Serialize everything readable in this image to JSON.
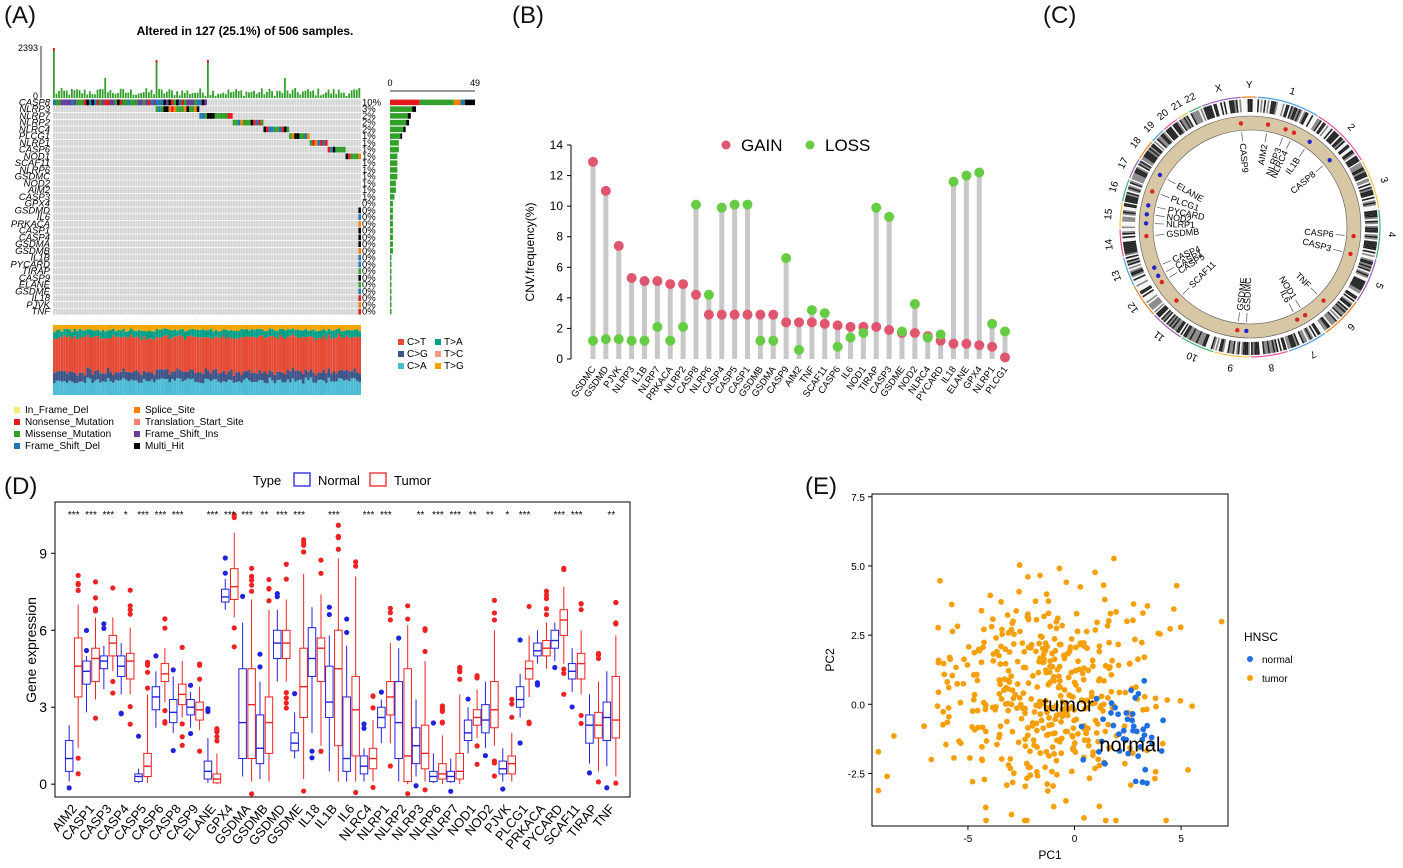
{
  "figure": {
    "panel_labels": [
      "(A)",
      "(B)",
      "(C)",
      "(D)",
      "(E)"
    ]
  },
  "chart_data": [
    {
      "panel": "A",
      "type": "heatmap",
      "title": "Altered in 127 (25.1%) of 506 samples.",
      "top_axis": {
        "max_label": "2393",
        "min_label": "0"
      },
      "right_axis": {
        "min_label": "0",
        "max_label": "49"
      },
      "genes": [
        "CASP8",
        "NLRP3",
        "NLRP7",
        "NLRP2",
        "NLRC4",
        "PLCG1",
        "NLRP1",
        "CASP6",
        "NOD1",
        "SCAF11",
        "NLRP6",
        "GSDMC",
        "NOD2",
        "AIM2",
        "CASP3",
        "GPX4",
        "GSDMD",
        "IL6",
        "PRKACA",
        "CASP1",
        "CASP4",
        "GSDMA",
        "GSDMB",
        "IL1B",
        "PYCARD",
        "TIRAP",
        "CASP9",
        "ELANE",
        "GSDME",
        "IL18",
        "PJVK",
        "TNF"
      ],
      "percents": [
        "10%",
        "3%",
        "2%",
        "2%",
        "2%",
        "1%",
        "1%",
        "1%",
        "1%",
        "1%",
        "1%",
        "1%",
        "1%",
        "1%",
        "1%",
        "0%",
        "0%",
        "0%",
        "0%",
        "0%",
        "0%",
        "0%",
        "0%",
        "0%",
        "0%",
        "0%",
        "0%",
        "0%",
        "0%",
        "0%",
        "0%",
        "0%"
      ],
      "gene_counts": [
        49,
        15,
        12,
        11,
        9,
        7,
        6,
        6,
        5,
        5,
        5,
        5,
        4,
        4,
        3,
        2,
        2,
        2,
        2,
        2,
        2,
        2,
        2,
        1,
        1,
        1,
        1,
        1,
        1,
        1,
        1,
        1
      ],
      "snv_legend": [
        {
          "label": "C>T",
          "color": "#e64b35"
        },
        {
          "label": "C>G",
          "color": "#3c5488"
        },
        {
          "label": "C>A",
          "color": "#4dbbd5"
        },
        {
          "label": "T>A",
          "color": "#00a087"
        },
        {
          "label": "T>C",
          "color": "#f39b7f"
        },
        {
          "label": "T>G",
          "color": "#f6a300"
        }
      ],
      "variant_legend": [
        {
          "label": "In_Frame_Del",
          "color": "#f2ed7a"
        },
        {
          "label": "Nonsense_Mutation",
          "color": "#e31a1c"
        },
        {
          "label": "Missense_Mutation",
          "color": "#33a02c"
        },
        {
          "label": "Frame_Shift_Del",
          "color": "#1f78b4"
        },
        {
          "label": "Splice_Site",
          "color": "#ff7f00"
        },
        {
          "label": "Translation_Start_Site",
          "color": "#fb8072"
        },
        {
          "label": "Frame_Shift_Ins",
          "color": "#6a3d9a"
        },
        {
          "label": "Multi_Hit",
          "color": "#000000"
        }
      ]
    },
    {
      "panel": "B",
      "type": "scatter",
      "ylabel": "CNV.frequency(%)",
      "ylim": [
        0,
        14
      ],
      "yticks": [
        0,
        2,
        4,
        6,
        8,
        10,
        12,
        14
      ],
      "legend": [
        {
          "name": "GAIN",
          "color": "#e0566e"
        },
        {
          "name": "LOSS",
          "color": "#66cc44"
        }
      ],
      "categories": [
        "GSDMC",
        "GSDMD",
        "PJVK",
        "NLRP3",
        "IL1B",
        "NLRP7",
        "PRKACA",
        "NLRP2",
        "CASP8",
        "NLRP6",
        "CASP4",
        "CASP5",
        "CASP1",
        "GSDMB",
        "GSDMA",
        "CASP9",
        "AIM2",
        "TNF",
        "SCAF11",
        "CASP6",
        "IL6",
        "NOD1",
        "TIRAP",
        "CASP3",
        "GSDME",
        "NOD2",
        "NLRC4",
        "PYCARD",
        "IL18",
        "ELANE",
        "GPX4",
        "NLRP1",
        "PLCG1"
      ],
      "series": [
        {
          "name": "GAIN",
          "values": [
            12.9,
            11.0,
            7.4,
            5.3,
            5.1,
            5.1,
            4.9,
            4.9,
            4.2,
            2.9,
            2.9,
            2.9,
            2.9,
            2.9,
            2.9,
            2.4,
            2.4,
            2.4,
            2.3,
            2.2,
            2.1,
            2.1,
            2.1,
            1.9,
            1.7,
            1.7,
            1.5,
            1.2,
            1.0,
            1.0,
            0.9,
            0.8,
            0.1
          ]
        },
        {
          "name": "LOSS",
          "values": [
            1.2,
            1.3,
            1.3,
            1.2,
            1.2,
            2.1,
            1.2,
            2.1,
            10.1,
            4.2,
            9.9,
            10.1,
            10.1,
            1.2,
            1.2,
            6.6,
            0.6,
            3.2,
            3.0,
            0.8,
            1.4,
            1.7,
            9.9,
            9.3,
            1.8,
            3.6,
            1.4,
            1.6,
            11.6,
            12.0,
            12.2,
            2.3,
            1.8
          ]
        }
      ]
    },
    {
      "panel": "C",
      "type": "other",
      "chromosomes": [
        "1",
        "2",
        "3",
        "4",
        "5",
        "6",
        "7",
        "8",
        "9",
        "10",
        "11",
        "12",
        "13",
        "14",
        "15",
        "16",
        "17",
        "18",
        "19",
        "20",
        "21",
        "22",
        "X",
        "Y"
      ],
      "genes": [
        "CASP9",
        "AIM2",
        "NLRP3",
        "NLRC4",
        "IL1B",
        "CASP8",
        "PLCG1",
        "ELANE",
        "GSDMB",
        "NLRP1",
        "NOD2",
        "PYCARD",
        "CASP6",
        "CASP3",
        "TNF",
        "NOD1",
        "IL6",
        "GSDMC",
        "GSDME",
        "SCAF11",
        "CASP5",
        "CASP1",
        "CASP4"
      ]
    },
    {
      "panel": "D",
      "type": "box",
      "title": "",
      "legend_title": "Type",
      "legend": [
        {
          "name": "Normal",
          "color": "#2222dd"
        },
        {
          "name": "Tumor",
          "color": "#ee2222"
        }
      ],
      "ylabel": "Gene expression",
      "ylim": [
        -0.5,
        11
      ],
      "yticks": [
        0,
        3,
        6,
        9
      ],
      "categories": [
        "AIM2",
        "CASP1",
        "CASP3",
        "CASP4",
        "CASP5",
        "CASP6",
        "CASP8",
        "CASP9",
        "ELANE",
        "GPX4",
        "GSDMA",
        "GSDMB",
        "GSDMD",
        "GSDME",
        "IL18",
        "IL1B",
        "IL6",
        "NLRC4",
        "NLRP1",
        "NLRP2",
        "NLRP3",
        "NLRP6",
        "NLRP7",
        "NOD1",
        "NOD2",
        "PJVK",
        "PLCG1",
        "PRKACA",
        "PYCARD",
        "SCAF11",
        "TIRAP",
        "TNF"
      ],
      "significance": [
        "***",
        "***",
        "***",
        "*",
        "***",
        "***",
        "***",
        "",
        "***",
        "***",
        "***",
        "**",
        "***",
        "***",
        "",
        "***",
        "",
        "***",
        "***",
        "",
        "**",
        "***",
        "***",
        "**",
        "**",
        "*",
        "***",
        "",
        "***",
        "***",
        "",
        "**"
      ],
      "normal_median": [
        1.0,
        4.4,
        4.8,
        4.6,
        0.3,
        3.4,
        2.8,
        3.0,
        0.5,
        7.3,
        2.4,
        1.4,
        5.5,
        1.6,
        4.9,
        3.2,
        1.0,
        0.7,
        2.6,
        2.4,
        1.5,
        0.3,
        0.3,
        2.0,
        2.5,
        0.6,
        3.3,
        5.2,
        5.6,
        4.4,
        2.3,
        2.6
      ],
      "tumor_median": [
        4.6,
        4.9,
        5.5,
        4.8,
        0.7,
        4.3,
        3.5,
        2.9,
        0.2,
        7.7,
        3.1,
        2.4,
        5.5,
        3.8,
        5.3,
        4.5,
        2.9,
        1.0,
        3.4,
        1.1,
        1.2,
        0.4,
        0.5,
        2.6,
        2.9,
        0.8,
        4.5,
        5.3,
        6.4,
        4.7,
        2.3,
        2.5
      ],
      "normal_q1": [
        0.5,
        3.9,
        4.5,
        4.2,
        0.1,
        2.9,
        2.4,
        2.7,
        0.2,
        7.1,
        1.0,
        0.8,
        4.9,
        1.3,
        4.2,
        2.6,
        0.5,
        0.4,
        2.2,
        1.0,
        0.8,
        0.1,
        0.1,
        1.7,
        2.0,
        0.4,
        3.0,
        5.0,
        5.3,
        4.1,
        1.6,
        1.7
      ],
      "normal_q3": [
        1.7,
        4.8,
        5.0,
        5.0,
        0.4,
        3.8,
        3.3,
        3.3,
        0.9,
        7.6,
        4.5,
        2.7,
        6.0,
        2.0,
        6.1,
        4.6,
        3.4,
        1.1,
        3.0,
        4.0,
        2.2,
        0.5,
        0.5,
        2.5,
        3.1,
        0.9,
        3.8,
        5.5,
        6.0,
        4.7,
        2.7,
        3.2
      ],
      "tumor_q1": [
        3.4,
        4.0,
        5.0,
        4.1,
        0.3,
        4.0,
        3.1,
        2.5,
        0.05,
        7.2,
        1.0,
        1.2,
        4.9,
        2.6,
        4.0,
        1.5,
        1.1,
        0.6,
        2.7,
        0.1,
        0.6,
        0.2,
        0.2,
        2.3,
        2.2,
        0.4,
        4.1,
        5.0,
        5.8,
        4.1,
        1.8,
        1.8
      ],
      "tumor_q3": [
        5.7,
        5.3,
        5.8,
        5.1,
        1.2,
        4.7,
        3.9,
        3.2,
        0.4,
        8.4,
        4.5,
        3.4,
        6.0,
        5.3,
        5.7,
        6.0,
        4.2,
        1.4,
        4.0,
        4.5,
        2.3,
        0.8,
        1.2,
        2.9,
        4.0,
        1.1,
        4.8,
        5.6,
        6.8,
        5.1,
        2.8,
        4.2
      ],
      "normal_lo": [
        0.1,
        2.8,
        3.7,
        3.5,
        0.05,
        2.2,
        2.0,
        2.2,
        0.05,
        6.8,
        0.3,
        0.2,
        4.0,
        1.0,
        2.0,
        0.5,
        0.1,
        0.1,
        1.6,
        0.1,
        0.3,
        0.05,
        0.05,
        1.2,
        1.4,
        0.1,
        2.6,
        4.7,
        4.8,
        3.6,
        0.8,
        0.7
      ],
      "normal_hi": [
        2.3,
        5.0,
        5.4,
        5.5,
        0.6,
        4.4,
        4.2,
        3.6,
        1.8,
        8.0,
        6.3,
        4.0,
        6.8,
        2.8,
        6.9,
        5.8,
        5.4,
        1.4,
        3.3,
        5.3,
        3.3,
        1.2,
        1.0,
        3.0,
        4.0,
        1.4,
        4.3,
        6.0,
        6.3,
        5.3,
        3.5,
        4.4
      ],
      "tumor_lo": [
        1.4,
        3.3,
        4.4,
        3.5,
        0.05,
        3.2,
        2.6,
        2.1,
        0.0,
        6.5,
        0.1,
        0.1,
        4.0,
        0.2,
        1.5,
        0.1,
        0.1,
        0.1,
        1.6,
        0.0,
        0.1,
        0.0,
        0.0,
        1.8,
        1.5,
        0.1,
        3.4,
        4.5,
        4.7,
        3.5,
        0.5,
        0.3
      ],
      "tumor_hi": [
        7.0,
        6.5,
        6.5,
        6.1,
        3.5,
        5.3,
        4.8,
        3.8,
        1.2,
        9.8,
        7.2,
        6.8,
        7.2,
        8.2,
        7.4,
        8.8,
        8.1,
        2.5,
        5.5,
        6.2,
        4.8,
        1.9,
        3.5,
        3.7,
        6.0,
        2.0,
        5.8,
        6.3,
        7.7,
        6.0,
        4.0,
        5.8
      ]
    },
    {
      "panel": "E",
      "type": "scatter",
      "xlabel": "PC1",
      "ylabel": "PC2",
      "xlim": [
        -9.5,
        7.2
      ],
      "ylim": [
        -4.4,
        7.6
      ],
      "xticks": [
        -5,
        0,
        5
      ],
      "yticks": [
        -2.5,
        0.0,
        2.5,
        5.0,
        7.5
      ],
      "yticklabels": [
        "-2.5",
        "0.0",
        "2.5",
        "5.0",
        "7.5"
      ],
      "legend_title": "HNSC",
      "legend": [
        {
          "name": "normal",
          "color": "#1f6fe0"
        },
        {
          "name": "tumor",
          "color": "#f5a00a"
        }
      ],
      "annotations": [
        {
          "text": "tumor",
          "x": -0.3,
          "y": 0.0
        },
        {
          "text": "normal",
          "x": 2.6,
          "y": -1.45
        }
      ],
      "series": [
        {
          "name": "normal",
          "n": 44,
          "center": [
            2.6,
            -1.3
          ],
          "spread": [
            1.1,
            0.9
          ]
        },
        {
          "name": "tumor",
          "n": 460,
          "center": [
            -1.4,
            0.5
          ],
          "spread": [
            2.5,
            2.0
          ]
        }
      ]
    }
  ]
}
